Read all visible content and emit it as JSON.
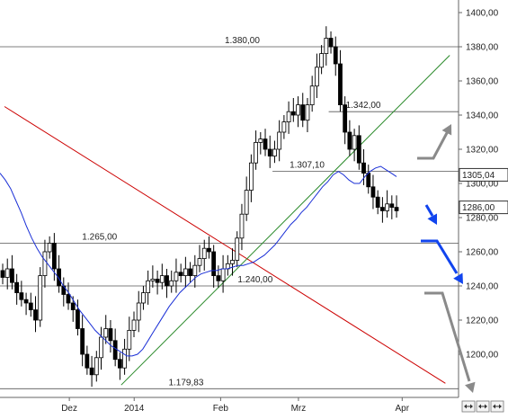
{
  "chart_data": {
    "type": "candlestick",
    "title": "",
    "xlabel": "",
    "ylabel": "",
    "ylim": [
      1175,
      1410
    ],
    "y_ticks": [
      1200,
      1220,
      1240,
      1260,
      1280,
      1300,
      1320,
      1340,
      1360,
      1380,
      1400
    ],
    "y_tick_labels": [
      "1200,00",
      "1220,00",
      "1240,00",
      "1260,00",
      "1280,00",
      "1300,00",
      "1320,00",
      "1340,00",
      "1360,00",
      "1380,00",
      "1400,00"
    ],
    "x_tick_labels": [
      "Dez",
      "2014",
      "Feb",
      "Mrz",
      "Apr"
    ],
    "x_tick_positions": [
      15,
      30,
      50,
      68,
      92
    ],
    "xlim": [
      0,
      104
    ],
    "grid": false,
    "current_price_label": "1305,04",
    "last_price_label": "1286,00",
    "close": [
      1245,
      1250,
      1242,
      1236,
      1232,
      1230,
      1226,
      1220,
      1246,
      1260,
      1265,
      1250,
      1240,
      1235,
      1230,
      1226,
      1215,
      1200,
      1192,
      1188,
      1198,
      1210,
      1215,
      1208,
      1197,
      1192,
      1203,
      1214,
      1220,
      1230,
      1236,
      1243,
      1244,
      1242,
      1246,
      1240,
      1243,
      1248,
      1246,
      1250,
      1246,
      1252,
      1256,
      1262,
      1260,
      1246,
      1243,
      1250,
      1253,
      1255,
      1268,
      1282,
      1296,
      1312,
      1324,
      1326,
      1320,
      1316,
      1320,
      1330,
      1336,
      1342,
      1340,
      1346,
      1337,
      1346,
      1357,
      1368,
      1376,
      1385,
      1380,
      1370,
      1346,
      1330,
      1320,
      1328,
      1312,
      1306,
      1298,
      1292,
      1286,
      1284,
      1288,
      1286,
      1284
    ],
    "ma_values": [
      1306,
      1302,
      1297,
      1290,
      1283,
      1275,
      1268,
      1262,
      1257,
      1253,
      1249,
      1245,
      1240,
      1236,
      1231,
      1226,
      1222,
      1218,
      1214,
      1211,
      1208,
      1205,
      1203,
      1201,
      1199,
      1199,
      1200,
      1203,
      1208,
      1213,
      1218,
      1223,
      1228,
      1232,
      1236,
      1239,
      1242,
      1245,
      1247,
      1248,
      1249,
      1249,
      1250,
      1250,
      1251,
      1252,
      1252,
      1253,
      1254,
      1256,
      1258,
      1261,
      1264,
      1268,
      1272,
      1276,
      1279,
      1283,
      1286,
      1290,
      1294,
      1298,
      1301,
      1305,
      1307,
      1305,
      1302,
      1300,
      1300,
      1304,
      1307,
      1309,
      1310,
      1308,
      1306,
      1304
    ],
    "ma_start_index": 0,
    "horizontal_levels": [
      {
        "value": 1380,
        "label": "1.380,00",
        "label_x": 55
      },
      {
        "value": 1342,
        "label": "1.342,00",
        "label_x": 83
      },
      {
        "value": 1307.1,
        "label": "1.307,10",
        "label_x": 70
      },
      {
        "value": 1265,
        "label": "1.265,00",
        "label_x": 22
      },
      {
        "value": 1240,
        "label": "1.240,00",
        "label_x": 58
      },
      {
        "value": 1179.83,
        "label": "1.179,83",
        "label_x": 42
      }
    ],
    "trendlines": [
      {
        "color": "#cc0000",
        "from": [
          0,
          1345
        ],
        "to": [
          102,
          1183
        ]
      },
      {
        "color": "#2a8a2a",
        "from": [
          27,
          1182
        ],
        "to": [
          103,
          1375
        ]
      }
    ],
    "arrows": [
      {
        "color": "#888888",
        "style": "up"
      },
      {
        "color": "#1144ee",
        "style": "small-down"
      },
      {
        "color": "#1144ee",
        "style": "down"
      },
      {
        "color": "#888888",
        "style": "long-down"
      }
    ]
  },
  "toolbar": {
    "icons": [
      "zoom-in-icon",
      "zoom-out-icon",
      "reset-icon"
    ]
  },
  "colors": {
    "candle_up": "#ffffff",
    "candle_down": "#000000",
    "moving_average": "#1a2fd6",
    "level_line": "#555555"
  }
}
